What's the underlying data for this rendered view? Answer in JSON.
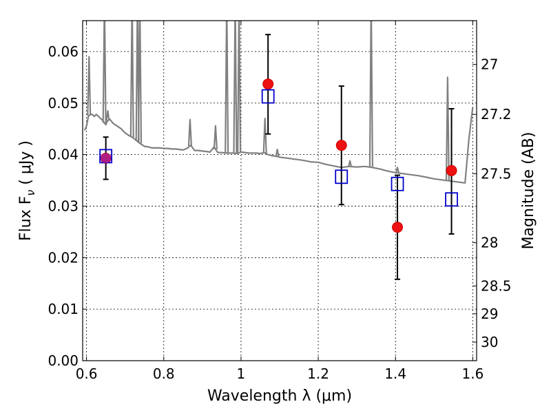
{
  "chart_data": {
    "type": "scatter",
    "xlabel": "Wavelength  λ (μm)",
    "ylabel": "Flux  F",
    "ylabel_sub": "ν",
    "ylabel_unit": " ( μJy )",
    "y2label": "Magnitude (AB)",
    "xlim": [
      0.59,
      1.61
    ],
    "ylim": [
      0.0,
      0.066
    ],
    "grid": true,
    "x_ticks": [
      0.6,
      0.8,
      1.0,
      1.2,
      1.4,
      1.6
    ],
    "x_tick_labels": [
      "0.6",
      "0.8",
      "1",
      "1.2",
      "1.4",
      "1.6"
    ],
    "y_ticks": [
      0.0,
      0.01,
      0.02,
      0.03,
      0.04,
      0.05,
      0.06
    ],
    "y_tick_labels": [
      "0.00",
      "0.01",
      "0.02",
      "0.03",
      "0.04",
      "0.05",
      "0.06"
    ],
    "y2_ticks": [
      {
        "label": "27",
        "flux": 0.0575
      },
      {
        "label": "27.2",
        "flux": 0.0478
      },
      {
        "label": "27.5",
        "flux": 0.0363
      },
      {
        "label": "28",
        "flux": 0.0229
      },
      {
        "label": "28.5",
        "flux": 0.0145
      },
      {
        "label": "29",
        "flux": 0.0091
      },
      {
        "label": "30",
        "flux": 0.0036
      }
    ],
    "series": [
      {
        "kind": "line",
        "color": "#808080",
        "x": [
          0.595,
          0.6,
          0.605,
          0.61,
          0.615,
          0.62,
          0.625,
          0.63,
          0.633,
          0.635,
          0.64,
          0.645,
          0.65,
          0.655,
          0.66,
          0.665,
          0.67,
          0.68,
          0.69,
          0.7,
          0.71,
          0.715,
          0.72,
          0.73,
          0.74,
          0.75,
          0.76,
          0.77,
          0.78,
          0.79,
          0.8,
          0.81,
          0.82,
          0.83,
          0.84,
          0.85,
          0.86,
          0.87,
          0.88,
          0.89,
          0.9,
          0.91,
          0.92,
          0.93,
          0.94,
          0.95,
          0.96,
          0.97,
          0.98,
          0.99,
          1.0,
          1.01,
          1.02,
          1.03,
          1.04,
          1.05,
          1.06,
          1.07,
          1.08,
          1.09,
          1.1,
          1.12,
          1.14,
          1.16,
          1.18,
          1.2,
          1.22,
          1.24,
          1.26,
          1.28,
          1.3,
          1.32,
          1.34,
          1.36,
          1.38,
          1.4,
          1.42,
          1.44,
          1.46,
          1.48,
          1.5,
          1.52,
          1.54,
          1.56,
          1.58,
          1.59,
          1.6
        ],
        "y": [
          0.0447,
          0.0455,
          0.0475,
          0.0478,
          0.0478,
          0.0474,
          0.0478,
          0.0475,
          0.0473,
          0.0471,
          0.0468,
          0.0463,
          0.0458,
          0.0466,
          0.0469,
          0.0464,
          0.046,
          0.0455,
          0.045,
          0.0442,
          0.0437,
          0.0435,
          0.0433,
          0.0427,
          0.0421,
          0.0416,
          0.0415,
          0.0413,
          0.0413,
          0.0413,
          0.0412,
          0.0412,
          0.0411,
          0.0411,
          0.041,
          0.0409,
          0.0412,
          0.0418,
          0.0408,
          0.0408,
          0.0407,
          0.0406,
          0.0405,
          0.0415,
          0.0404,
          0.0404,
          0.0403,
          0.0403,
          0.0403,
          0.0402,
          0.0405,
          0.0404,
          0.0403,
          0.0403,
          0.0403,
          0.0402,
          0.0404,
          0.04,
          0.0398,
          0.0397,
          0.0395,
          0.0393,
          0.0391,
          0.0389,
          0.0386,
          0.0385,
          0.0381,
          0.0378,
          0.0375,
          0.0377,
          0.0376,
          0.0377,
          0.0375,
          0.0372,
          0.0368,
          0.0365,
          0.0363,
          0.0361,
          0.0359,
          0.0356,
          0.0353,
          0.0351,
          0.0349,
          0.0347,
          0.0345,
          0.043,
          0.0492
        ]
      },
      {
        "kind": "spikes",
        "color": "#808080",
        "lines": [
          {
            "x": 0.6065,
            "peak": 0.059
          },
          {
            "x": 0.6465,
            "peak": 0.07
          },
          {
            "x": 0.655,
            "peak": 0.0485
          },
          {
            "x": 0.718,
            "peak": 0.07
          },
          {
            "x": 0.732,
            "peak": 0.07
          },
          {
            "x": 0.738,
            "peak": 0.07
          },
          {
            "x": 0.868,
            "peak": 0.0468
          },
          {
            "x": 0.934,
            "peak": 0.0456
          },
          {
            "x": 0.963,
            "peak": 0.07
          },
          {
            "x": 0.985,
            "peak": 0.07
          },
          {
            "x": 0.995,
            "peak": 0.07
          },
          {
            "x": 1.062,
            "peak": 0.047
          },
          {
            "x": 1.094,
            "peak": 0.041
          },
          {
            "x": 1.282,
            "peak": 0.0388
          },
          {
            "x": 1.337,
            "peak": 0.07
          },
          {
            "x": 1.405,
            "peak": 0.0375
          },
          {
            "x": 1.535,
            "peak": 0.055
          }
        ]
      },
      {
        "kind": "errorbar",
        "color": "#000000",
        "x": [
          0.65,
          1.07,
          1.26,
          1.405,
          1.545
        ],
        "y": [
          0.0393,
          0.0537,
          0.0418,
          0.0259,
          0.0369
        ],
        "yerr_low": [
          0.0041,
          0.0097,
          0.0115,
          0.0101,
          0.0123
        ],
        "yerr_high": [
          0.0041,
          0.0096,
          0.0115,
          0.0101,
          0.012
        ]
      },
      {
        "kind": "marker-square",
        "color": "#0000cc",
        "x": [
          0.65,
          1.07,
          1.26,
          1.405,
          1.545
        ],
        "y": [
          0.0397,
          0.0513,
          0.0357,
          0.0343,
          0.0313
        ]
      }
    ]
  }
}
